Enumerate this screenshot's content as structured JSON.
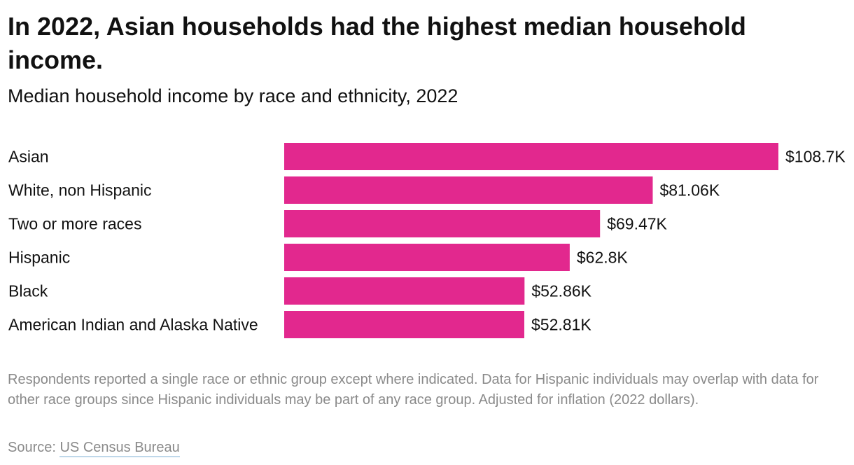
{
  "title": "In 2022, Asian households had the highest median household income.",
  "subtitle": "Median household income by race and ethnicity, 2022",
  "note": "Respondents reported a single race or ethnic group except where indicated. Data for Hispanic individuals may overlap with data for other race groups since Hispanic individuals may be part of any race group. Adjusted for inflation (2022 dollars).",
  "source": {
    "prefix": "Source: ",
    "link_text": "US Census Bureau"
  },
  "colors": {
    "bar": "#e2288e",
    "text": "#111111",
    "muted": "#8a8a8a"
  },
  "chart_data": {
    "type": "bar",
    "orientation": "horizontal",
    "categories": [
      "Asian",
      "White, non Hispanic",
      "Two or more races",
      "Hispanic",
      "Black",
      "American Indian and Alaska Native"
    ],
    "values": [
      108.7,
      81.06,
      69.47,
      62.8,
      52.86,
      52.81
    ],
    "value_labels": [
      "$108.7K",
      "$81.06K",
      "$69.47K",
      "$62.8K",
      "$52.86K",
      "$52.81K"
    ],
    "title": "In 2022, Asian households had the highest median household income.",
    "subtitle": "Median household income by race and ethnicity, 2022",
    "xlabel": "",
    "ylabel": "",
    "xlim": [
      0,
      108.7
    ],
    "grid": false,
    "legend": "none"
  }
}
